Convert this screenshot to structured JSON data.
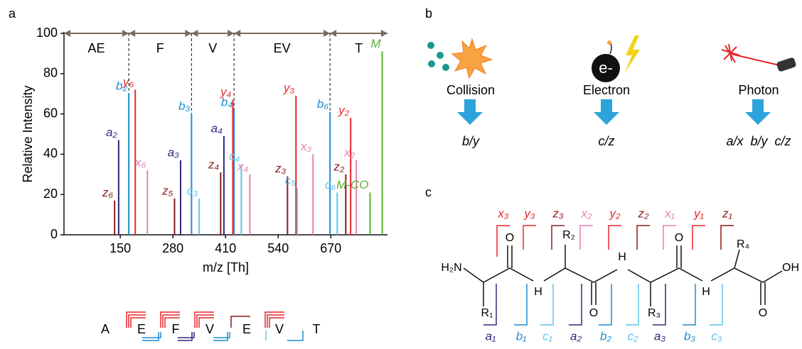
{
  "panel_labels": [
    "a",
    "b",
    "c"
  ],
  "chart_data": {
    "type": "stem",
    "ylabel": "Relative Intensity",
    "xlabel": "m/z [Th]",
    "xlim": [
      11,
      810
    ],
    "ylim": [
      0,
      100
    ],
    "xticks": [
      150,
      280,
      410,
      540,
      670
    ],
    "yticks": [
      0,
      20,
      40,
      60,
      80,
      100
    ],
    "x": [
      136,
      146,
      171,
      187,
      217,
      284,
      299,
      326,
      345,
      398,
      406,
      428,
      431,
      449,
      470,
      563,
      584,
      587,
      626,
      668,
      686,
      707,
      719,
      733,
      767,
      797
    ],
    "values": [
      17,
      47,
      70,
      72,
      32,
      18,
      37,
      60,
      18,
      31,
      49,
      67,
      62,
      35,
      30,
      29,
      69,
      23,
      40,
      61,
      21,
      30,
      58,
      37,
      21,
      91
    ],
    "peak_labels": [
      "z₆",
      "a₂",
      "b₂",
      "y₆",
      "x₆",
      "z₅",
      "a₃",
      "b₃",
      "c₃",
      "z₄",
      "a₄",
      "y₄",
      "b₄",
      "c₄",
      "x₄",
      "z₃",
      "y₃",
      "c₅",
      "x₃",
      "b₆",
      "c₆",
      "z₂",
      "y₂",
      "x₂",
      "M-CO",
      "M"
    ],
    "colors": [
      "#8b1a1a",
      "#2e2a7a",
      "#1f8ccf",
      "#e8262b",
      "#e77fb4",
      "#8b1a1a",
      "#2e2a7a",
      "#1f8ccf",
      "#5ec3ea",
      "#8b1a1a",
      "#2e2a7a",
      "#e8262b",
      "#1f8ccf",
      "#5ec3ea",
      "#e77fb4",
      "#8b1a1a",
      "#e8262b",
      "#5ec3ea",
      "#e77fb4",
      "#1f8ccf",
      "#5ec3ea",
      "#8b1a1a",
      "#e8262b",
      "#e77fb4",
      "#5ab031",
      "#5ab031"
    ],
    "segments": {
      "boundaries": [
        171,
        326,
        431,
        668
      ],
      "labels": [
        "AE",
        "F",
        "V",
        "EV",
        "T"
      ]
    }
  },
  "sequence": [
    "A",
    "E",
    "F",
    "V",
    "E",
    "V",
    "T"
  ],
  "activation": [
    {
      "method": "Collision",
      "ions": "b/y"
    },
    {
      "method": "Electron",
      "ions": "c/z",
      "icon_text": "e-"
    },
    {
      "method": "Photon",
      "ions": "a/x  b/y  c/z"
    }
  ],
  "structure": {
    "atoms": [
      "H₂N",
      "R₁",
      "O",
      "H",
      "R₂",
      "O",
      "H",
      "R₃",
      "O",
      "H",
      "R₄",
      "O",
      "OH"
    ],
    "top_labels": [
      "x₃",
      "y₃",
      "z₃",
      "x₂",
      "y₂",
      "z₂",
      "x₁",
      "y₁",
      "z₁"
    ],
    "top_colors": [
      "#e8262b",
      "#e8262b",
      "#8b1a1a",
      "#e77fb4",
      "#e8262b",
      "#8b1a1a",
      "#e77fb4",
      "#e8262b",
      "#8b1a1a"
    ],
    "bottom_labels": [
      "a₁",
      "b₁",
      "c₁",
      "a₂",
      "b₂",
      "c₂",
      "a₃",
      "b₃",
      "c₃"
    ],
    "bottom_colors": [
      "#2e2a7a",
      "#1f8ccf",
      "#5ec3ea",
      "#2e2a7a",
      "#1f8ccf",
      "#5ec3ea",
      "#2e2a7a",
      "#1f8ccf",
      "#5ec3ea"
    ]
  }
}
